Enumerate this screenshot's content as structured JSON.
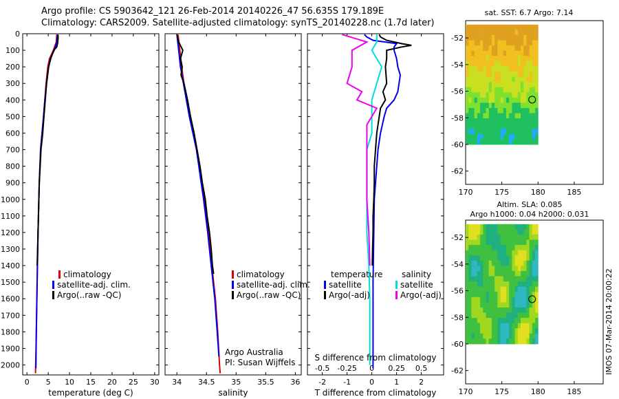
{
  "header": {
    "line1": "Argo profile: CS 5903642_121 26-Feb-2014 20140226_47 56.635S 179.189E",
    "line2": "Climatology: CARS2009. Satellite-adjusted climatology: synTS_20140228.nc (1.7d later)"
  },
  "credit": {
    "line1": "Argo Australia",
    "line2": "PI: Susan Wijffels"
  },
  "vertical_stamp": "IMOS 07-Mar-2014 20:00:22",
  "colors": {
    "climatology": "#dd0000",
    "satellite": "#0000ee",
    "argo": "#000000",
    "argo_adj_s": "#ee00ee",
    "sat_s": "#00dddd"
  },
  "chart_data": [
    {
      "type": "line",
      "xlabel": "temperature (deg C)",
      "ylabel": "",
      "xlim": [
        -1,
        31
      ],
      "ylim": [
        2060,
        0
      ],
      "xticks": [
        0,
        5,
        10,
        15,
        20,
        25,
        30
      ],
      "yticks": [
        0,
        100,
        200,
        300,
        400,
        500,
        600,
        700,
        800,
        900,
        1000,
        1100,
        1200,
        1300,
        1400,
        1500,
        1600,
        1700,
        1800,
        1900,
        2000
      ],
      "legend": [
        "climatology",
        "satellite-adj. clim.",
        "Argo(..raw -QC)"
      ],
      "legend_position": "lower-center",
      "series": [
        {
          "name": "climatology",
          "color": "#dd0000",
          "depth": [
            5,
            50,
            100,
            150,
            200,
            300,
            400,
            500,
            700,
            900,
            1200,
            1500,
            1800,
            2050
          ],
          "values": [
            7.0,
            6.9,
            6.2,
            5.3,
            4.9,
            4.5,
            4.2,
            3.9,
            3.2,
            2.9,
            2.6,
            2.4,
            2.2,
            2.0
          ]
        },
        {
          "name": "satellite-adj. clim.",
          "color": "#0000ee",
          "depth": [
            5,
            50,
            100,
            150,
            200,
            300,
            400,
            500,
            700,
            900,
            1200,
            1500,
            1800,
            2020
          ],
          "values": [
            7.2,
            7.0,
            6.4,
            5.5,
            5.1,
            4.6,
            4.2,
            3.9,
            3.2,
            2.9,
            2.6,
            2.4,
            2.2,
            2.1
          ]
        },
        {
          "name": "Argo(..raw -QC)",
          "color": "#000000",
          "depth": [
            5,
            30,
            60,
            80,
            100,
            150,
            200,
            300,
            400,
            500,
            600,
            700,
            800,
            900,
            1000,
            1100,
            1200,
            1300,
            1400
          ],
          "values": [
            7.3,
            7.3,
            7.2,
            7.0,
            6.3,
            5.6,
            5.1,
            4.6,
            4.3,
            4.0,
            3.7,
            3.3,
            3.1,
            2.9,
            2.8,
            2.7,
            2.6,
            2.5,
            2.4
          ]
        }
      ]
    },
    {
      "type": "line",
      "xlabel": "salinity",
      "xlim": [
        33.8,
        36.1
      ],
      "ylim": [
        2060,
        0
      ],
      "xticks": [
        34,
        34.5,
        35,
        35.5,
        36
      ],
      "xtick_labels": [
        "34",
        "34.5",
        "35",
        "35.5",
        "36"
      ],
      "legend": [
        "climatology",
        "satellite-adj. clim.",
        "Argo(..raw -QC)"
      ],
      "legend_position": "lower-right",
      "series": [
        {
          "name": "climatology",
          "color": "#dd0000",
          "depth": [
            5,
            100,
            200,
            300,
            400,
            500,
            600,
            700,
            800,
            900,
            1000,
            1200,
            1400,
            1600,
            1800,
            2000,
            2050
          ],
          "values": [
            34.02,
            34.05,
            34.08,
            34.12,
            34.17,
            34.22,
            34.28,
            34.34,
            34.38,
            34.42,
            34.46,
            34.53,
            34.59,
            34.65,
            34.69,
            34.72,
            34.73
          ]
        },
        {
          "name": "satellite-adj. clim.",
          "color": "#0000ee",
          "depth": [
            5,
            100,
            200,
            300,
            400,
            500,
            600,
            700,
            800,
            900,
            1000,
            1200,
            1400,
            1600,
            1800,
            1950
          ],
          "values": [
            34.0,
            34.03,
            34.06,
            34.11,
            34.16,
            34.21,
            34.27,
            34.33,
            34.37,
            34.41,
            34.45,
            34.52,
            34.58,
            34.64,
            34.68,
            34.71
          ]
        },
        {
          "name": "Argo(..raw -QC)",
          "color": "#000000",
          "depth": [
            5,
            50,
            100,
            150,
            200,
            250,
            300,
            400,
            500,
            600,
            700,
            800,
            900,
            1000,
            1100,
            1200,
            1300,
            1400,
            1450
          ],
          "values": [
            34.0,
            34.03,
            34.1,
            34.06,
            34.09,
            34.07,
            34.12,
            34.18,
            34.23,
            34.29,
            34.34,
            34.39,
            34.43,
            34.48,
            34.51,
            34.55,
            34.58,
            34.6,
            34.62
          ]
        }
      ]
    },
    {
      "type": "line",
      "xlabel": "T difference from climatology",
      "x2label": "S difference from climatology",
      "xlim": [
        -2.6,
        2.9
      ],
      "ylim": [
        2060,
        0
      ],
      "xticks": [
        -2,
        -1,
        0,
        1,
        2
      ],
      "xticks_top": [
        "-0.5",
        "-0.25",
        "0",
        "0.25",
        "0.5"
      ],
      "legend_temperature_heading": "temperature",
      "legend_salinity_heading": "salinity",
      "legend": [
        "satellite",
        "Argo(-adj)",
        "satellite",
        "Argo(-adj)"
      ],
      "legend_position": "lower-center",
      "series": [
        {
          "name": "satellite",
          "group": "temperature",
          "color": "#0000ee",
          "depth": [
            5,
            20,
            40,
            60,
            80,
            100,
            150,
            200,
            250,
            300,
            350,
            400,
            450,
            500,
            600,
            700,
            800,
            900,
            1000,
            1200,
            1500,
            1800,
            2020
          ],
          "values": [
            -0.3,
            -0.2,
            0.05,
            1.0,
            0.9,
            0.9,
            1.0,
            1.05,
            1.15,
            1.1,
            1.05,
            0.9,
            0.6,
            0.5,
            0.35,
            0.25,
            0.2,
            0.15,
            0.1,
            0.08,
            0.05,
            0.05,
            0.05
          ]
        },
        {
          "name": "Argo(-adj)",
          "group": "temperature",
          "color": "#000000",
          "depth": [
            5,
            20,
            40,
            60,
            70,
            80,
            100,
            150,
            200,
            300,
            350,
            400,
            450,
            500,
            550,
            600,
            700,
            800,
            900,
            1000,
            1100,
            1200,
            1300,
            1400
          ],
          "values": [
            0.3,
            0.35,
            0.6,
            1.2,
            1.6,
            1.2,
            0.6,
            0.6,
            0.55,
            0.6,
            0.45,
            0.55,
            0.35,
            0.3,
            0.25,
            0.2,
            0.15,
            0.1,
            0.1,
            0.08,
            0.05,
            0.05,
            0.03,
            0.02
          ]
        },
        {
          "name": "satellite",
          "group": "salinity",
          "color": "#00dddd",
          "depth": [
            5,
            50,
            100,
            200,
            300,
            400,
            500,
            600,
            700,
            800,
            900,
            1000,
            1200,
            1400,
            1600,
            1800,
            2000
          ],
          "values": [
            0.05,
            0.05,
            0.0,
            0.1,
            0.05,
            0.0,
            0.0,
            0.0,
            -0.05,
            -0.05,
            -0.05,
            -0.05,
            -0.05,
            -0.03,
            -0.02,
            -0.02,
            -0.02
          ]
        },
        {
          "name": "Argo(-adj)",
          "group": "salinity",
          "color": "#ee00ee",
          "depth": [
            5,
            50,
            100,
            200,
            300,
            350,
            400,
            450,
            500,
            550,
            600,
            650,
            700,
            800,
            900,
            1000,
            1200,
            1400
          ],
          "values": [
            -0.3,
            -0.05,
            -0.2,
            -0.2,
            -0.25,
            -0.1,
            -0.15,
            0.05,
            0.0,
            -0.05,
            -0.05,
            -0.05,
            -0.05,
            -0.05,
            -0.05,
            -0.05,
            -0.03,
            -0.02
          ]
        }
      ]
    },
    {
      "type": "heatmap",
      "title": "sat. SST: 6.7 Argo: 7.14",
      "xlim": [
        170,
        189
      ],
      "ylim": [
        -63,
        -50.7
      ],
      "xticks": [
        170,
        175,
        180,
        185
      ],
      "yticks": [
        -52,
        -54,
        -56,
        -58,
        -60,
        -62
      ],
      "ytick_labels": [
        "-52",
        "-54",
        "-56",
        "-58",
        "-60",
        "-62"
      ],
      "data_extent": {
        "lon": [
          170,
          180
        ],
        "lat": [
          -60,
          -51
        ]
      },
      "marker": {
        "lon": 179.189,
        "lat": -56.635
      }
    },
    {
      "type": "heatmap",
      "title_line1": "Altim. SLA: 0.085",
      "title_line2": "Argo h1000: 0.04 h2000: 0.031",
      "xlim": [
        170,
        189
      ],
      "ylim": [
        -63,
        -50.7
      ],
      "xticks": [
        170,
        175,
        180,
        185
      ],
      "yticks": [
        -52,
        -54,
        -56,
        -58,
        -60,
        -62
      ],
      "ytick_labels": [
        "-52",
        "-54",
        "-56",
        "-58",
        "-60",
        "-62"
      ],
      "data_extent": {
        "lon": [
          170,
          180
        ],
        "lat": [
          -60,
          -51
        ]
      },
      "marker": {
        "lon": 179.189,
        "lat": -56.635
      }
    }
  ]
}
